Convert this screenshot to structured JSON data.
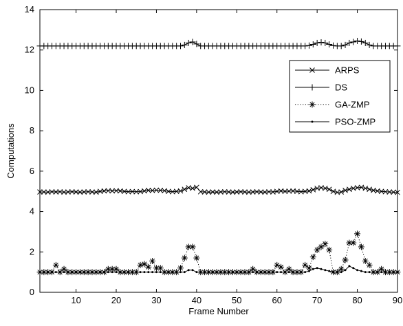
{
  "chart_data": {
    "type": "line",
    "title": "",
    "xlabel": "Frame Number",
    "ylabel": "Computations",
    "xlim": [
      1,
      90
    ],
    "ylim": [
      0,
      14
    ],
    "xticks": [
      10,
      20,
      30,
      40,
      50,
      60,
      70,
      80,
      90
    ],
    "yticks": [
      0,
      2,
      4,
      6,
      8,
      10,
      12,
      14
    ],
    "grid": false,
    "legend_position": "top-right",
    "x": [
      1,
      2,
      3,
      4,
      5,
      6,
      7,
      8,
      9,
      10,
      11,
      12,
      13,
      14,
      15,
      16,
      17,
      18,
      19,
      20,
      21,
      22,
      23,
      24,
      25,
      26,
      27,
      28,
      29,
      30,
      31,
      32,
      33,
      34,
      35,
      36,
      37,
      38,
      39,
      40,
      41,
      42,
      43,
      44,
      45,
      46,
      47,
      48,
      49,
      50,
      51,
      52,
      53,
      54,
      55,
      56,
      57,
      58,
      59,
      60,
      61,
      62,
      63,
      64,
      65,
      66,
      67,
      68,
      69,
      70,
      71,
      72,
      73,
      74,
      75,
      76,
      77,
      78,
      79,
      80,
      81,
      82,
      83,
      84,
      85,
      86,
      87,
      88,
      89,
      90
    ],
    "series": [
      {
        "name": "ARPS",
        "marker": "x",
        "linestyle": "solid",
        "values": [
          4.97,
          4.97,
          4.96,
          4.98,
          4.97,
          4.98,
          4.96,
          4.97,
          4.98,
          4.97,
          4.96,
          4.97,
          4.98,
          4.97,
          4.96,
          5.0,
          5.02,
          5.03,
          5.02,
          5.03,
          5.02,
          5.0,
          4.98,
          4.99,
          4.98,
          4.99,
          5.02,
          5.05,
          5.04,
          5.06,
          5.05,
          5.03,
          5.0,
          4.98,
          5.0,
          5.02,
          5.1,
          5.18,
          5.15,
          5.2,
          4.98,
          4.97,
          4.96,
          4.97,
          4.96,
          4.97,
          4.98,
          4.97,
          4.96,
          4.97,
          4.98,
          4.97,
          4.96,
          4.97,
          4.98,
          4.97,
          4.96,
          4.98,
          4.97,
          5.0,
          5.02,
          5.0,
          5.01,
          5.02,
          5.0,
          4.98,
          5.0,
          5.02,
          5.08,
          5.15,
          5.18,
          5.15,
          5.1,
          5.0,
          4.95,
          4.97,
          5.05,
          5.1,
          5.15,
          5.18,
          5.2,
          5.15,
          5.1,
          5.05,
          5.02,
          5.0,
          4.98,
          4.97,
          4.96,
          4.95
        ]
      },
      {
        "name": "DS",
        "marker": "+",
        "linestyle": "solid",
        "values": [
          12.2,
          12.2,
          12.2,
          12.2,
          12.2,
          12.2,
          12.2,
          12.2,
          12.2,
          12.2,
          12.2,
          12.2,
          12.2,
          12.2,
          12.2,
          12.2,
          12.2,
          12.2,
          12.2,
          12.2,
          12.2,
          12.2,
          12.2,
          12.2,
          12.2,
          12.2,
          12.2,
          12.2,
          12.2,
          12.2,
          12.2,
          12.2,
          12.2,
          12.2,
          12.2,
          12.2,
          12.25,
          12.35,
          12.4,
          12.3,
          12.2,
          12.2,
          12.2,
          12.2,
          12.2,
          12.2,
          12.2,
          12.2,
          12.2,
          12.2,
          12.2,
          12.2,
          12.2,
          12.2,
          12.2,
          12.2,
          12.2,
          12.2,
          12.2,
          12.2,
          12.2,
          12.2,
          12.2,
          12.2,
          12.2,
          12.2,
          12.2,
          12.22,
          12.28,
          12.35,
          12.38,
          12.35,
          12.28,
          12.22,
          12.2,
          12.2,
          12.25,
          12.35,
          12.4,
          12.45,
          12.42,
          12.35,
          12.25,
          12.2,
          12.2,
          12.2,
          12.2,
          12.2,
          12.2,
          12.2
        ]
      },
      {
        "name": "GA-ZMP",
        "marker": "*",
        "linestyle": "dotted",
        "values": [
          1.0,
          1.0,
          1.0,
          1.0,
          1.35,
          1.0,
          1.15,
          1.0,
          1.0,
          1.0,
          1.0,
          1.0,
          1.0,
          1.0,
          1.0,
          1.0,
          1.0,
          1.15,
          1.15,
          1.15,
          1.0,
          1.0,
          1.0,
          1.0,
          1.0,
          1.35,
          1.4,
          1.25,
          1.55,
          1.2,
          1.2,
          1.0,
          1.0,
          1.0,
          1.0,
          1.2,
          1.7,
          2.25,
          2.25,
          1.7,
          1.0,
          1.0,
          1.0,
          1.0,
          1.0,
          1.0,
          1.0,
          1.0,
          1.0,
          1.0,
          1.0,
          1.0,
          1.0,
          1.15,
          1.0,
          1.0,
          1.0,
          1.0,
          1.0,
          1.35,
          1.25,
          1.0,
          1.15,
          1.0,
          1.0,
          1.0,
          1.35,
          1.2,
          1.75,
          2.1,
          2.25,
          2.4,
          2.1,
          1.0,
          1.0,
          1.15,
          1.6,
          2.45,
          2.45,
          2.9,
          2.25,
          1.55,
          1.35,
          1.0,
          1.0,
          1.15,
          1.0,
          1.0,
          1.0,
          1.0
        ]
      },
      {
        "name": "PSO-ZMP",
        "marker": ".",
        "linestyle": "solid",
        "values": [
          1.0,
          1.0,
          1.0,
          1.0,
          1.0,
          1.0,
          1.0,
          1.0,
          1.0,
          1.0,
          1.0,
          1.0,
          1.0,
          1.0,
          1.0,
          1.0,
          1.0,
          1.0,
          1.0,
          1.0,
          1.0,
          1.0,
          1.0,
          1.0,
          1.0,
          1.0,
          1.0,
          1.0,
          1.0,
          1.0,
          1.0,
          1.0,
          1.0,
          1.0,
          1.0,
          1.0,
          1.0,
          1.1,
          1.1,
          1.0,
          1.0,
          1.0,
          1.0,
          1.0,
          1.0,
          1.0,
          1.0,
          1.0,
          1.0,
          1.0,
          1.0,
          1.0,
          1.0,
          1.0,
          1.0,
          1.0,
          1.0,
          1.0,
          1.0,
          1.0,
          1.0,
          1.0,
          1.0,
          1.0,
          1.0,
          1.0,
          1.0,
          1.05,
          1.15,
          1.2,
          1.15,
          1.1,
          1.05,
          1.0,
          1.0,
          1.0,
          1.1,
          1.3,
          1.2,
          1.1,
          1.05,
          1.0,
          1.0,
          1.0,
          1.0,
          1.0,
          1.0,
          1.0,
          1.0,
          1.0
        ]
      }
    ]
  }
}
